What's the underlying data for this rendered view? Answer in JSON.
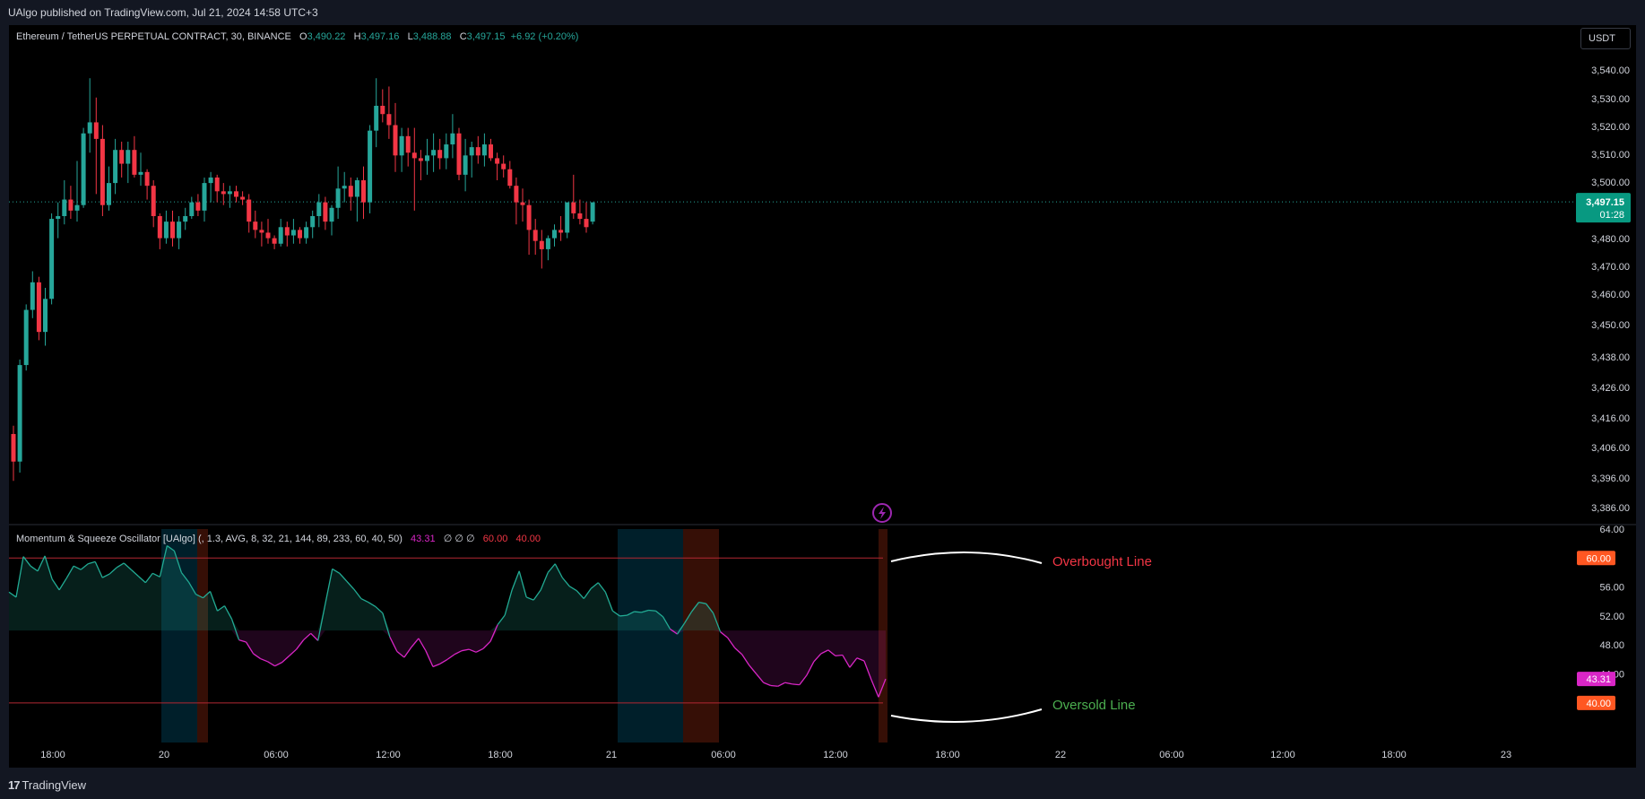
{
  "header": {
    "publisher": "UAlgo published on TradingView.com, Jul 21, 2024 14:58 UTC+3"
  },
  "footer": {
    "brand": "TradingView"
  },
  "colors": {
    "up": "#26a69a",
    "down": "#f23645",
    "background": "#000000",
    "osc_high": "#22ab94",
    "osc_low": "#d926c6",
    "overbought": "#f23645",
    "oversold": "#4caf50",
    "last_label": "#089981",
    "line_label": "#f7525f"
  },
  "main_legend": {
    "symbol": "Ethereum / TetherUS PERPETUAL CONTRACT, 30, BINANCE",
    "o_label": "O",
    "o_value": "3,490.22",
    "h_label": "H",
    "h_value": "3,497.16",
    "l_label": "L",
    "l_value": "3,488.88",
    "c_label": "C",
    "c_value": "3,497.15",
    "change": "+6.92 (+0.20%)"
  },
  "currency_button": "USDT",
  "price_label": {
    "price": "3,497.15",
    "countdown": "01:28"
  },
  "oscillator_legend": {
    "name": "Momentum & Squeeze Oscillator [UAlgo] (, 1.3, AVG, 8, 32, 21, 144, 89, 233, 60, 40, 50)",
    "value": "43.31",
    "empties": "∅ ∅ ∅",
    "ob_value": "60.00",
    "os_value": "40.00"
  },
  "osc_axis_labels": {
    "ob": "60.00",
    "os": "40.00",
    "current": "43.31"
  },
  "annotations": {
    "overbought": "Overbought Line",
    "oversold": "Oversold Line"
  },
  "chart_data": [
    {
      "type": "candlestick",
      "title": "Ethereum / TetherUS PERPETUAL CONTRACT, 30, BINANCE",
      "ylim": [
        3386,
        3545
      ],
      "y_ticks": [
        "3,540.00",
        "3,530.00",
        "3,520.00",
        "3,510.00",
        "3,500.00",
        "3,490.00",
        "3,480.00",
        "3,470.00",
        "3,460.00",
        "3,450.00",
        "3,438.00",
        "3,426.00",
        "3,416.00",
        "3,406.00",
        "3,396.00",
        "3,386.00"
      ],
      "x_ticks": [
        "18:00",
        "20",
        "06:00",
        "12:00",
        "18:00",
        "21",
        "06:00",
        "12:00",
        "18:00",
        "22",
        "06:00",
        "12:00",
        "18:00",
        "23"
      ],
      "last_price": 3497.15,
      "candles": [
        [
          3413,
          3416,
          3396,
          3403
        ],
        [
          3403,
          3440,
          3399,
          3438
        ],
        [
          3438,
          3460,
          3436,
          3458
        ],
        [
          3458,
          3472,
          3455,
          3468
        ],
        [
          3468,
          3470,
          3447,
          3450
        ],
        [
          3450,
          3466,
          3445,
          3462
        ],
        [
          3462,
          3493,
          3460,
          3491
        ],
        [
          3491,
          3497,
          3484,
          3492
        ],
        [
          3492,
          3505,
          3489,
          3498
        ],
        [
          3498,
          3503,
          3491,
          3494
        ],
        [
          3494,
          3512,
          3490,
          3496
        ],
        [
          3496,
          3524,
          3495,
          3522
        ],
        [
          3522,
          3542,
          3515,
          3526
        ],
        [
          3526,
          3535,
          3500,
          3520
        ],
        [
          3520,
          3525,
          3492,
          3496
        ],
        [
          3496,
          3510,
          3494,
          3504
        ],
        [
          3504,
          3520,
          3500,
          3516
        ],
        [
          3516,
          3519,
          3506,
          3511
        ],
        [
          3511,
          3519,
          3504,
          3516
        ],
        [
          3516,
          3521,
          3506,
          3507
        ],
        [
          3507,
          3515,
          3503,
          3508
        ],
        [
          3508,
          3509,
          3498,
          3503
        ],
        [
          3503,
          3505,
          3488,
          3492
        ],
        [
          3492,
          3493,
          3480,
          3484
        ],
        [
          3484,
          3494,
          3482,
          3490
        ],
        [
          3490,
          3494,
          3481,
          3484
        ],
        [
          3484,
          3492,
          3480,
          3490
        ],
        [
          3490,
          3495,
          3487,
          3492
        ],
        [
          3492,
          3499,
          3491,
          3497
        ],
        [
          3497,
          3500,
          3492,
          3494
        ],
        [
          3494,
          3506,
          3490,
          3504
        ],
        [
          3504,
          3508,
          3497,
          3506
        ],
        [
          3506,
          3507,
          3497,
          3501
        ],
        [
          3501,
          3504,
          3496,
          3500
        ],
        [
          3500,
          3503,
          3495,
          3501
        ],
        [
          3501,
          3503,
          3497,
          3499
        ],
        [
          3499,
          3501,
          3496,
          3498
        ],
        [
          3498,
          3500,
          3486,
          3490
        ],
        [
          3490,
          3494,
          3484,
          3487
        ],
        [
          3487,
          3490,
          3481,
          3486
        ],
        [
          3486,
          3491,
          3482,
          3484
        ],
        [
          3484,
          3485,
          3480,
          3482
        ],
        [
          3482,
          3491,
          3481,
          3488
        ],
        [
          3488,
          3490,
          3481,
          3485
        ],
        [
          3485,
          3491,
          3482,
          3487
        ],
        [
          3487,
          3488,
          3482,
          3484
        ],
        [
          3484,
          3490,
          3482,
          3488
        ],
        [
          3488,
          3494,
          3484,
          3492
        ],
        [
          3492,
          3500,
          3488,
          3497
        ],
        [
          3497,
          3499,
          3487,
          3490
        ],
        [
          3490,
          3496,
          3485,
          3495
        ],
        [
          3495,
          3510,
          3491,
          3502
        ],
        [
          3502,
          3508,
          3497,
          3503
        ],
        [
          3503,
          3506,
          3494,
          3499
        ],
        [
          3499,
          3506,
          3490,
          3505
        ],
        [
          3505,
          3510,
          3491,
          3497
        ],
        [
          3497,
          3525,
          3493,
          3523
        ],
        [
          3523,
          3542,
          3517,
          3532
        ],
        [
          3532,
          3538,
          3526,
          3529
        ],
        [
          3529,
          3539,
          3520,
          3525
        ],
        [
          3525,
          3533,
          3508,
          3514
        ],
        [
          3514,
          3524,
          3508,
          3521
        ],
        [
          3521,
          3524,
          3510,
          3515
        ],
        [
          3515,
          3524,
          3494,
          3513
        ],
        [
          3513,
          3516,
          3505,
          3512
        ],
        [
          3512,
          3520,
          3507,
          3514
        ],
        [
          3514,
          3522,
          3508,
          3516
        ],
        [
          3516,
          3520,
          3509,
          3513
        ],
        [
          3513,
          3522,
          3509,
          3518
        ],
        [
          3518,
          3529,
          3513,
          3522
        ],
        [
          3522,
          3524,
          3505,
          3507
        ],
        [
          3507,
          3520,
          3501,
          3514
        ],
        [
          3514,
          3519,
          3506,
          3517
        ],
        [
          3517,
          3521,
          3511,
          3514
        ],
        [
          3514,
          3522,
          3510,
          3518
        ],
        [
          3518,
          3520,
          3512,
          3513
        ],
        [
          3513,
          3515,
          3505,
          3511
        ],
        [
          3511,
          3514,
          3506,
          3509
        ],
        [
          3509,
          3512,
          3502,
          3503
        ],
        [
          3503,
          3506,
          3489,
          3497
        ],
        [
          3497,
          3502,
          3490,
          3496
        ],
        [
          3496,
          3498,
          3478,
          3487
        ],
        [
          3487,
          3491,
          3478,
          3483
        ],
        [
          3483,
          3487,
          3473,
          3480
        ],
        [
          3480,
          3485,
          3476,
          3484
        ],
        [
          3484,
          3489,
          3481,
          3487
        ],
        [
          3487,
          3492,
          3483,
          3486
        ],
        [
          3486,
          3497,
          3484,
          3497
        ],
        [
          3497,
          3507,
          3491,
          3493
        ],
        [
          3493,
          3498,
          3489,
          3491
        ],
        [
          3491,
          3497,
          3486,
          3488
        ],
        [
          3490,
          3497,
          3489,
          3497
        ]
      ]
    },
    {
      "type": "line",
      "title": "Momentum & Squeeze Oscillator [UAlgo]",
      "ylim": [
        38,
        64
      ],
      "y_ticks": [
        "64.00",
        "60.00",
        "56.00",
        "52.00",
        "48.00",
        "44.00",
        "40.00"
      ],
      "midline": 50,
      "overbought": 60,
      "oversold": 40,
      "current": 43.31,
      "values": [
        55.3,
        54.6,
        60.2,
        58.9,
        58.2,
        60.3,
        57.1,
        55.6,
        57.2,
        58.9,
        58.4,
        59.2,
        59.5,
        57.3,
        57.8,
        58.7,
        59.3,
        58.4,
        57.5,
        56.6,
        57.9,
        57.4,
        61.7,
        61.0,
        58.0,
        56.7,
        55.0,
        54.5,
        55.4,
        52.7,
        53.4,
        51.6,
        48.7,
        48.4,
        46.8,
        46.1,
        45.7,
        45.1,
        45.6,
        46.5,
        47.4,
        48.7,
        49.6,
        48.6,
        53.6,
        58.5,
        57.9,
        56.8,
        55.7,
        54.4,
        53.9,
        53.3,
        52.4,
        49.1,
        47.1,
        46.3,
        47.7,
        48.9,
        47.2,
        45.0,
        45.4,
        46.0,
        46.7,
        47.2,
        47.4,
        47.0,
        47.5,
        48.5,
        50.8,
        52.1,
        55.6,
        58.2,
        54.6,
        54.2,
        55.6,
        58.0,
        59.2,
        57.3,
        56.1,
        55.5,
        54.4,
        55.8,
        56.6,
        55.3,
        52.7,
        52.0,
        52.1,
        52.6,
        52.5,
        52.8,
        52.7,
        51.9,
        50.2,
        49.5,
        51.0,
        52.6,
        53.9,
        53.7,
        52.4,
        49.8,
        49.0,
        47.6,
        46.7,
        45.2,
        44.0,
        42.8,
        42.4,
        42.3,
        42.8,
        42.6,
        42.5,
        43.8,
        45.7,
        46.8,
        47.3,
        46.5,
        46.6,
        44.9,
        46.2,
        45.8,
        43.2,
        40.8,
        43.31
      ]
    }
  ]
}
